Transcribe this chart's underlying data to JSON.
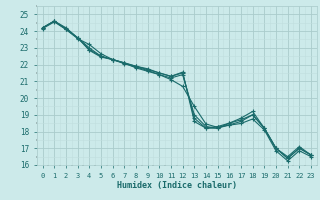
{
  "xlabel": "Humidex (Indice chaleur)",
  "bg_color": "#cceaea",
  "grid_major_color": "#aacccc",
  "grid_minor_color": "#c0dede",
  "line_color": "#1a6b6b",
  "xlim": [
    -0.5,
    23.5
  ],
  "ylim": [
    16,
    25.5
  ],
  "xticks": [
    0,
    1,
    2,
    3,
    4,
    5,
    6,
    7,
    8,
    9,
    10,
    11,
    12,
    13,
    14,
    15,
    16,
    17,
    18,
    19,
    20,
    21,
    22,
    23
  ],
  "yticks": [
    16,
    17,
    18,
    19,
    20,
    21,
    22,
    23,
    24,
    25
  ],
  "lines": [
    [
      24.2,
      24.6,
      24.15,
      23.6,
      22.85,
      22.45,
      22.3,
      22.1,
      21.9,
      21.75,
      21.5,
      21.3,
      21.55,
      18.6,
      18.2,
      18.2,
      18.5,
      18.7,
      19.0,
      18.2,
      17.0,
      16.4,
      17.0,
      16.6
    ],
    [
      24.15,
      24.55,
      24.1,
      23.55,
      23.2,
      22.65,
      22.3,
      22.05,
      21.85,
      21.65,
      21.4,
      21.1,
      20.7,
      19.5,
      18.45,
      18.25,
      18.38,
      18.48,
      18.75,
      18.1,
      16.85,
      16.25,
      16.85,
      16.5
    ],
    [
      24.2,
      24.6,
      24.1,
      23.6,
      23.0,
      22.5,
      22.3,
      22.1,
      21.9,
      21.7,
      21.5,
      21.3,
      21.5,
      18.8,
      18.2,
      18.3,
      18.5,
      18.8,
      19.2,
      18.2,
      17.0,
      16.5,
      17.1,
      16.6
    ],
    [
      24.2,
      24.6,
      24.2,
      23.6,
      22.9,
      22.5,
      22.3,
      22.1,
      21.8,
      21.6,
      21.4,
      21.2,
      21.4,
      19.0,
      18.3,
      18.2,
      18.4,
      18.6,
      19.0,
      18.2,
      17.0,
      16.4,
      17.0,
      16.6
    ]
  ]
}
